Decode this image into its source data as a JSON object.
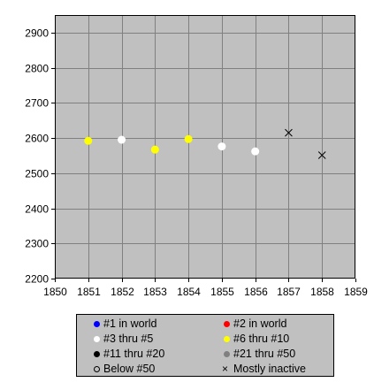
{
  "chart_data": {
    "type": "scatter",
    "xlim": [
      1850,
      1859
    ],
    "ylim": [
      2200,
      2950
    ],
    "x_ticks": [
      "1850",
      "1851",
      "1852",
      "1853",
      "1854",
      "1855",
      "1856",
      "1857",
      "1858",
      "1859"
    ],
    "y_ticks": [
      "2200",
      "2300",
      "2400",
      "2500",
      "2600",
      "2700",
      "2800",
      "2900"
    ],
    "grid": true,
    "legend_placement": "bottom",
    "colors": {
      "plot_bg": "#c0c0c0",
      "grid": "#808080",
      "rank1": "#0000ff",
      "rank2": "#ff0000",
      "rank3to5": "#ffffff",
      "rank6to10": "#ffff00",
      "rank11to20": "#000000",
      "rank21to50": "#808080"
    },
    "points": [
      {
        "x": 1851,
        "y": 2592,
        "category": "#6 thru #10"
      },
      {
        "x": 1852,
        "y": 2595,
        "category": "#3 thru #5"
      },
      {
        "x": 1853,
        "y": 2567,
        "category": "#6 thru #10"
      },
      {
        "x": 1854,
        "y": 2597,
        "category": "#6 thru #10"
      },
      {
        "x": 1855,
        "y": 2576,
        "category": "#3 thru #5"
      },
      {
        "x": 1856,
        "y": 2562,
        "category": "#3 thru #5"
      },
      {
        "x": 1857,
        "y": 2615,
        "category": "Mostly inactive"
      },
      {
        "x": 1858,
        "y": 2551,
        "category": "Mostly inactive"
      }
    ],
    "legend": [
      {
        "label": "#1 in world",
        "marker": "dot",
        "color": "#0000ff"
      },
      {
        "label": "#2 in world",
        "marker": "dot",
        "color": "#ff0000"
      },
      {
        "label": "#3 thru #5",
        "marker": "dot",
        "color": "#ffffff"
      },
      {
        "label": "#6 thru #10",
        "marker": "dot",
        "color": "#ffff00"
      },
      {
        "label": "#11 thru #20",
        "marker": "dot",
        "color": "#000000"
      },
      {
        "label": "#21 thru #50",
        "marker": "dot",
        "color": "#808080"
      },
      {
        "label": "Below #50",
        "marker": "ring",
        "color": "#000000"
      },
      {
        "label": "Mostly inactive",
        "marker": "x",
        "color": "#000000"
      }
    ]
  }
}
